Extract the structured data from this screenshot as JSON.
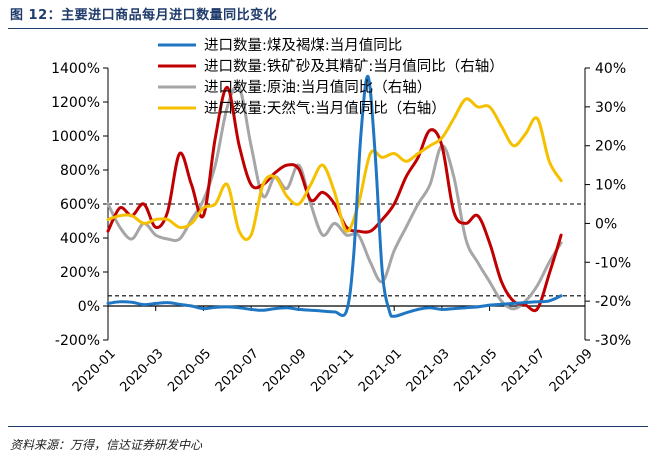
{
  "header": {
    "title": "图 12：主要进口商品每月进口数量同比变化"
  },
  "footer": {
    "source": "资料来源：万得，信达证券研发中心"
  },
  "chart_data": {
    "type": "line",
    "title": "主要进口商品每月进口数量同比变化",
    "x_labels": [
      "2020-01",
      "2020-03",
      "2020-05",
      "2020-07",
      "2020-09",
      "2020-11",
      "2021-01",
      "2021-03",
      "2021-05",
      "2021-07",
      "2021-09"
    ],
    "x_positions": [
      0,
      2,
      4,
      6,
      8,
      10,
      12,
      14,
      16,
      18,
      20
    ],
    "x_range": [
      0,
      20
    ],
    "left_axis": {
      "range": [
        -200,
        1400
      ],
      "ticks": [
        -200,
        0,
        200,
        400,
        600,
        800,
        1000,
        1200,
        1400
      ],
      "tick_labels": [
        "-200%",
        "0%",
        "200%",
        "400%",
        "600%",
        "800%",
        "1000%",
        "1200%",
        "1400%"
      ]
    },
    "right_axis": {
      "range": [
        -30,
        40
      ],
      "ticks": [
        -30,
        -20,
        -10,
        0,
        10,
        20,
        30,
        40
      ],
      "tick_labels": [
        "-30%",
        "-20%",
        "-10%",
        "0%",
        "10%",
        "20%",
        "30%",
        "40%"
      ]
    },
    "reference_lines": [
      {
        "axis": "left",
        "value": 600
      },
      {
        "axis": "left",
        "value": 60
      }
    ],
    "series": [
      {
        "name": "进口数量:煤及褐煤:当月值同比",
        "axis": "left",
        "color": "#1f77c4",
        "x": [
          0,
          0.5,
          1,
          1.5,
          2,
          2.5,
          3,
          3.5,
          4,
          4.5,
          5,
          5.5,
          6,
          6.5,
          7,
          7.5,
          8,
          8.5,
          9,
          9.5,
          10,
          10.3,
          10.6,
          10.9,
          11.2,
          11.5,
          11.8,
          12,
          12.5,
          13,
          13.5,
          14,
          14.5,
          15,
          15.5,
          16,
          16.5,
          17,
          17.5,
          18,
          18.5,
          19
        ],
        "values": [
          15,
          25,
          22,
          8,
          15,
          20,
          10,
          0,
          -15,
          -8,
          -5,
          -10,
          -20,
          -25,
          -15,
          -10,
          -20,
          -25,
          -30,
          -35,
          -30,
          300,
          1000,
          1350,
          900,
          200,
          -30,
          -60,
          -40,
          -20,
          -10,
          -20,
          -15,
          -10,
          -5,
          5,
          10,
          15,
          20,
          25,
          30,
          60
        ]
      },
      {
        "name": "进口数量:铁矿砂及其精矿:当月值同比（右轴）",
        "axis": "right",
        "color": "#c00000",
        "x": [
          0,
          0.5,
          1,
          1.5,
          2,
          2.5,
          3,
          3.5,
          4,
          4.5,
          5,
          5.5,
          6,
          6.5,
          7,
          7.5,
          8,
          8.5,
          9,
          9.5,
          10,
          10.5,
          11,
          11.5,
          12,
          12.5,
          13,
          13.5,
          14,
          14.5,
          15,
          15.5,
          16,
          16.5,
          17,
          17.5,
          18,
          18.5,
          19
        ],
        "values": [
          -2,
          4,
          2,
          5,
          -1,
          3,
          18,
          10,
          2,
          22,
          35,
          20,
          10,
          10,
          13,
          15,
          14,
          6,
          8,
          5,
          -1,
          -2,
          -2,
          1,
          5,
          12,
          17,
          24,
          20,
          3,
          0,
          2,
          -5,
          -15,
          -20,
          -21,
          -22,
          -13,
          -3
        ],
        "note": "values in right-axis units (%)"
      },
      {
        "name": "进口数量:原油:当月值同比（右轴）",
        "axis": "right",
        "color": "#a6a6a6",
        "x": [
          0,
          0.5,
          1,
          1.5,
          2,
          2.5,
          3,
          3.5,
          4,
          4.5,
          5,
          5.5,
          6,
          6.5,
          7,
          7.5,
          8,
          8.5,
          9,
          9.5,
          10,
          10.5,
          11,
          11.5,
          12,
          12.5,
          13,
          13.5,
          14,
          14.5,
          15,
          15.5,
          16,
          16.5,
          17,
          17.5,
          18,
          18.5,
          19
        ],
        "values": [
          5,
          -1,
          -4,
          0,
          -3,
          -4,
          -4,
          1,
          6,
          15,
          30,
          35,
          20,
          7,
          12,
          9,
          15,
          5,
          -3,
          0,
          -3,
          -3,
          -10,
          -15,
          -7,
          -1,
          5,
          10,
          20,
          12,
          -4,
          -10,
          -15,
          -20,
          -22,
          -20,
          -16,
          -10,
          -5
        ]
      },
      {
        "name": "进口数量:天然气:当月值同比（右轴）",
        "axis": "right",
        "color": "#f5c000",
        "x": [
          0,
          0.5,
          1,
          1.5,
          2,
          2.5,
          3,
          3.5,
          4,
          4.5,
          5,
          5.5,
          6,
          6.5,
          7,
          7.5,
          8,
          8.5,
          9,
          9.5,
          10,
          10.5,
          11,
          11.5,
          12,
          12.5,
          13,
          13.5,
          14,
          14.5,
          15,
          15.5,
          16,
          16.5,
          17,
          17.5,
          18,
          18.5,
          19
        ],
        "values": [
          1,
          2,
          2,
          0,
          1,
          1,
          -1,
          0,
          4,
          5,
          10,
          -2,
          -3,
          10,
          12,
          7,
          5,
          10,
          15,
          8,
          -2,
          5,
          18,
          17,
          18,
          16,
          18,
          20,
          22,
          27,
          32,
          30,
          30,
          25,
          20,
          23,
          27,
          16,
          11
        ]
      }
    ],
    "legend": {
      "placement": "top-left",
      "entries": [
        {
          "label": "进口数量:煤及褐煤:当月值同比",
          "color": "#1f77c4"
        },
        {
          "label": "进口数量:铁矿砂及其精矿:当月值同比（右轴）",
          "color": "#c00000"
        },
        {
          "label": "进口数量:原油:当月值同比（右轴）",
          "color": "#a6a6a6"
        },
        {
          "label": "进口数量:天然气:当月值同比（右轴）",
          "color": "#f5c000"
        }
      ]
    },
    "grid": false
  }
}
